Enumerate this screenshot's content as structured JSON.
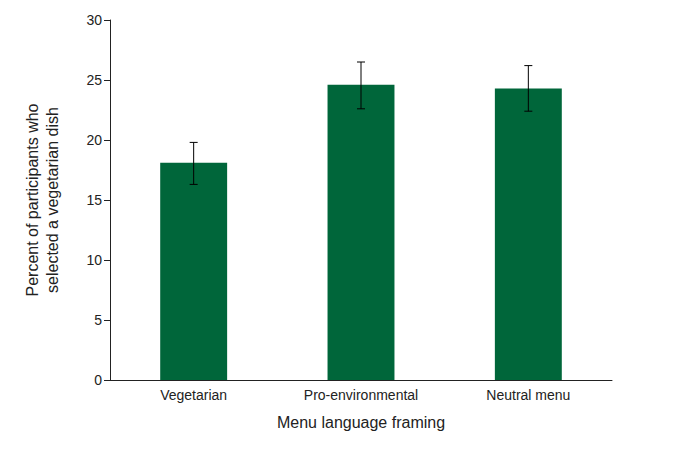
{
  "chart_data": {
    "type": "bar",
    "x_label": "Menu language framing",
    "y_label": "Percent of participants who\nselected a vegetarian dish",
    "categories": [
      "Vegetarian",
      "Pro-environmental",
      "Neutral menu"
    ],
    "values": [
      18.1,
      24.6,
      24.3
    ],
    "error_bars": [
      [
        16.3,
        19.8
      ],
      [
        22.6,
        26.5
      ],
      [
        22.4,
        26.2
      ]
    ],
    "color": "#00663a",
    "ylim": [
      0,
      30
    ],
    "yticks": [
      0,
      5,
      10,
      15,
      20,
      25,
      30
    ],
    "grid": false
  }
}
